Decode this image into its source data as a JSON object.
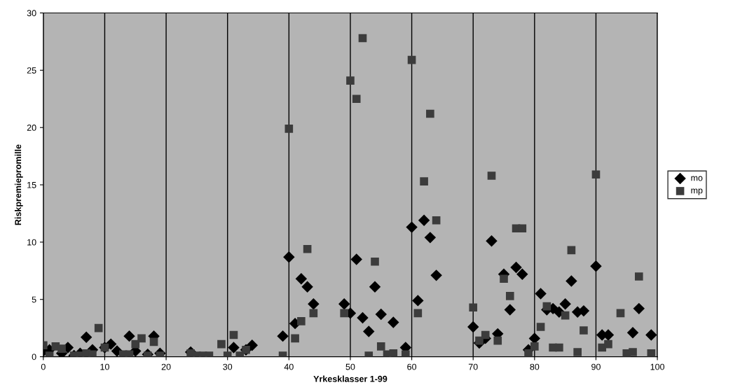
{
  "chart_data": {
    "type": "scatter",
    "xlabel": "Yrkesklasser 1-99",
    "ylabel": "Riskpremiepromille",
    "xlim": [
      0,
      100
    ],
    "xticks": [
      0,
      10,
      20,
      30,
      40,
      50,
      60,
      70,
      80,
      90,
      100
    ],
    "ylim": [
      0,
      30
    ],
    "yticks": [
      0,
      5,
      10,
      15,
      20,
      25,
      30
    ],
    "grid": "x",
    "legend": "right",
    "series": [
      {
        "name": "mo",
        "color": "#000000",
        "marker": "diamond",
        "x": [
          0,
          1,
          3,
          4,
          5,
          6,
          7,
          8,
          10,
          11,
          12,
          14,
          15,
          17,
          18,
          19,
          24,
          31,
          33,
          34,
          39,
          40,
          41,
          42,
          43,
          44,
          49,
          50,
          51,
          52,
          53,
          54,
          55,
          57,
          59,
          60,
          61,
          62,
          63,
          64,
          70,
          71,
          72,
          73,
          74,
          75,
          76,
          77,
          78,
          79,
          80,
          81,
          82,
          83,
          84,
          85,
          86,
          87,
          88,
          90,
          91,
          92,
          96,
          97,
          99
        ],
        "values": [
          0.5,
          0.6,
          0.3,
          0.8,
          0.1,
          0.3,
          1.7,
          0.6,
          0.8,
          1.1,
          0.5,
          1.8,
          0.5,
          0.2,
          1.8,
          0.3,
          0.4,
          0.8,
          0.6,
          1.0,
          1.8,
          8.7,
          2.9,
          6.8,
          6.1,
          4.6,
          4.6,
          3.8,
          8.5,
          3.4,
          2.2,
          6.1,
          3.7,
          3.0,
          0.8,
          11.3,
          4.9,
          11.9,
          10.4,
          7.1,
          2.6,
          1.2,
          1.6,
          10.1,
          2.0,
          7.2,
          4.1,
          7.8,
          7.2,
          0.6,
          1.6,
          5.5,
          4.1,
          4.2,
          3.9,
          4.6,
          6.6,
          3.9,
          4.0,
          7.9,
          1.9,
          1.9,
          2.1,
          4.2,
          1.9
        ]
      },
      {
        "name": "mp",
        "color": "#3c3c3c",
        "marker": "square",
        "x": [
          0,
          1,
          2,
          3,
          5,
          6,
          7,
          8,
          9,
          10,
          13,
          14,
          15,
          16,
          17,
          18,
          19,
          24,
          25,
          26,
          27,
          29,
          30,
          31,
          32,
          33,
          39,
          40,
          41,
          42,
          43,
          44,
          49,
          50,
          51,
          52,
          53,
          54,
          55,
          56,
          57,
          59,
          60,
          61,
          62,
          63,
          64,
          70,
          71,
          72,
          73,
          74,
          75,
          76,
          77,
          78,
          79,
          80,
          81,
          82,
          83,
          84,
          85,
          86,
          87,
          88,
          90,
          91,
          92,
          94,
          95,
          96,
          97,
          99
        ],
        "values": [
          1.0,
          0.1,
          0.9,
          0.7,
          0.1,
          0.1,
          0.3,
          0.2,
          2.5,
          0.8,
          0.2,
          0.2,
          1.1,
          1.6,
          0.1,
          1.3,
          0.1,
          0.3,
          0.1,
          0.1,
          0.1,
          1.1,
          0.1,
          1.9,
          0.1,
          0.6,
          0.1,
          19.9,
          1.6,
          3.1,
          9.4,
          3.8,
          3.8,
          24.1,
          22.5,
          27.8,
          0.1,
          8.3,
          0.9,
          0.2,
          0.3,
          0.2,
          25.9,
          3.8,
          15.3,
          21.2,
          11.9,
          4.3,
          1.4,
          1.9,
          15.8,
          1.4,
          6.8,
          5.3,
          11.2,
          11.2,
          0.3,
          0.9,
          2.6,
          4.4,
          0.8,
          0.8,
          3.6,
          9.3,
          0.4,
          2.3,
          15.9,
          0.8,
          1.1,
          3.8,
          0.3,
          0.4,
          7.0,
          0.3
        ]
      }
    ]
  }
}
